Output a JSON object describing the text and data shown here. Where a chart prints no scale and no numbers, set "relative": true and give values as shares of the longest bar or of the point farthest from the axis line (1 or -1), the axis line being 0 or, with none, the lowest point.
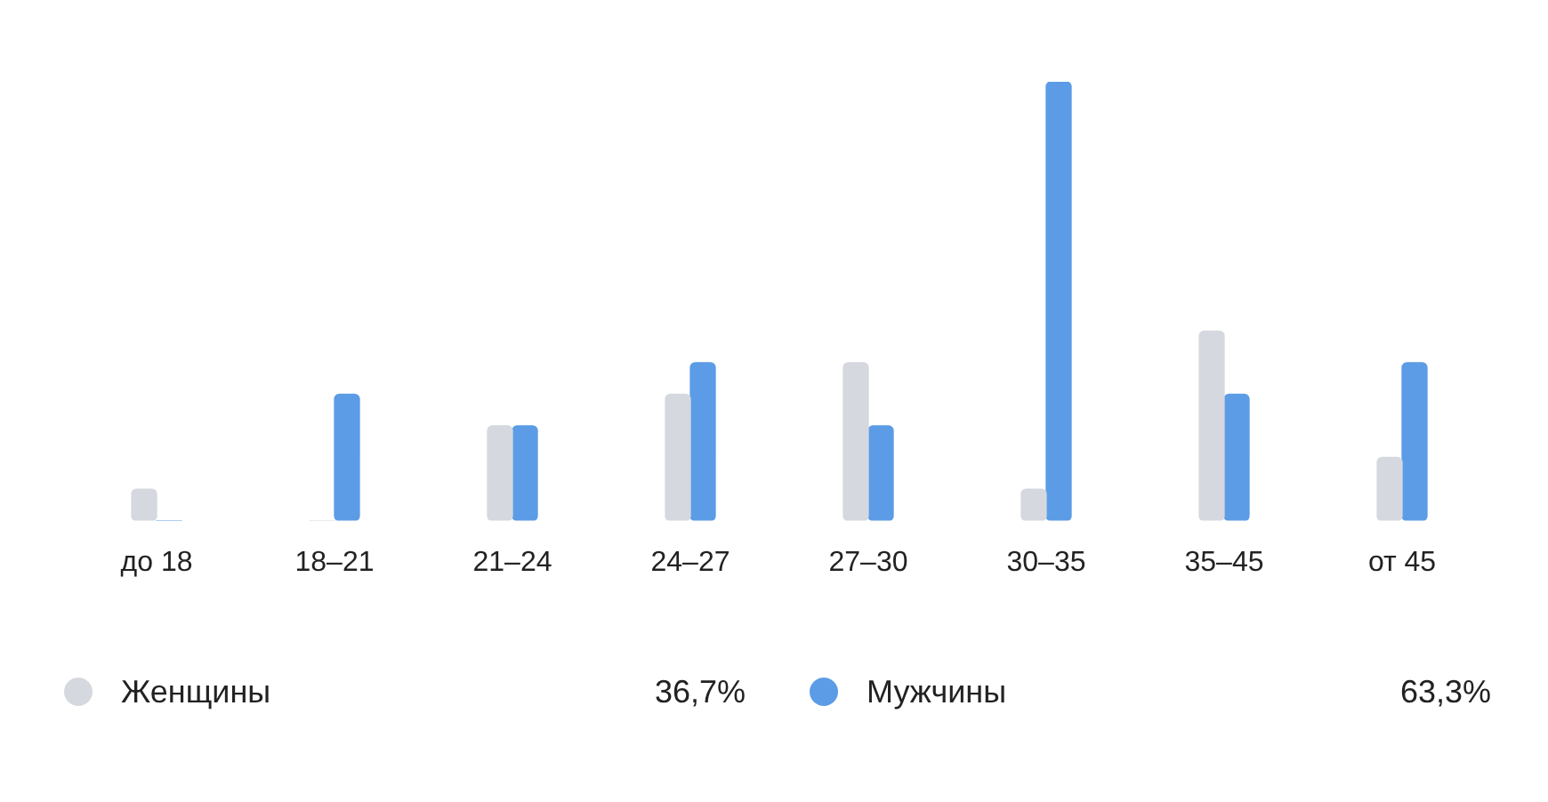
{
  "chart_data": {
    "type": "bar",
    "relative": true,
    "categories": [
      "до 18",
      "18–21",
      "21–24",
      "24–27",
      "27–30",
      "30–35",
      "35–45",
      "от 45"
    ],
    "series": [
      {
        "name": "Женщины",
        "color": "#d5d8de",
        "values": [
          0.072,
          0,
          0.216,
          0.288,
          0.36,
          0.072,
          0.432,
          0.144
        ]
      },
      {
        "name": "Мужчины",
        "color": "#5c9ce6",
        "values": [
          0,
          0.288,
          0.216,
          0.36,
          0.216,
          1,
          0.288,
          0.36
        ]
      }
    ],
    "legend": "bottom",
    "annotations": [
      "36,7%",
      "63,3%"
    ]
  }
}
